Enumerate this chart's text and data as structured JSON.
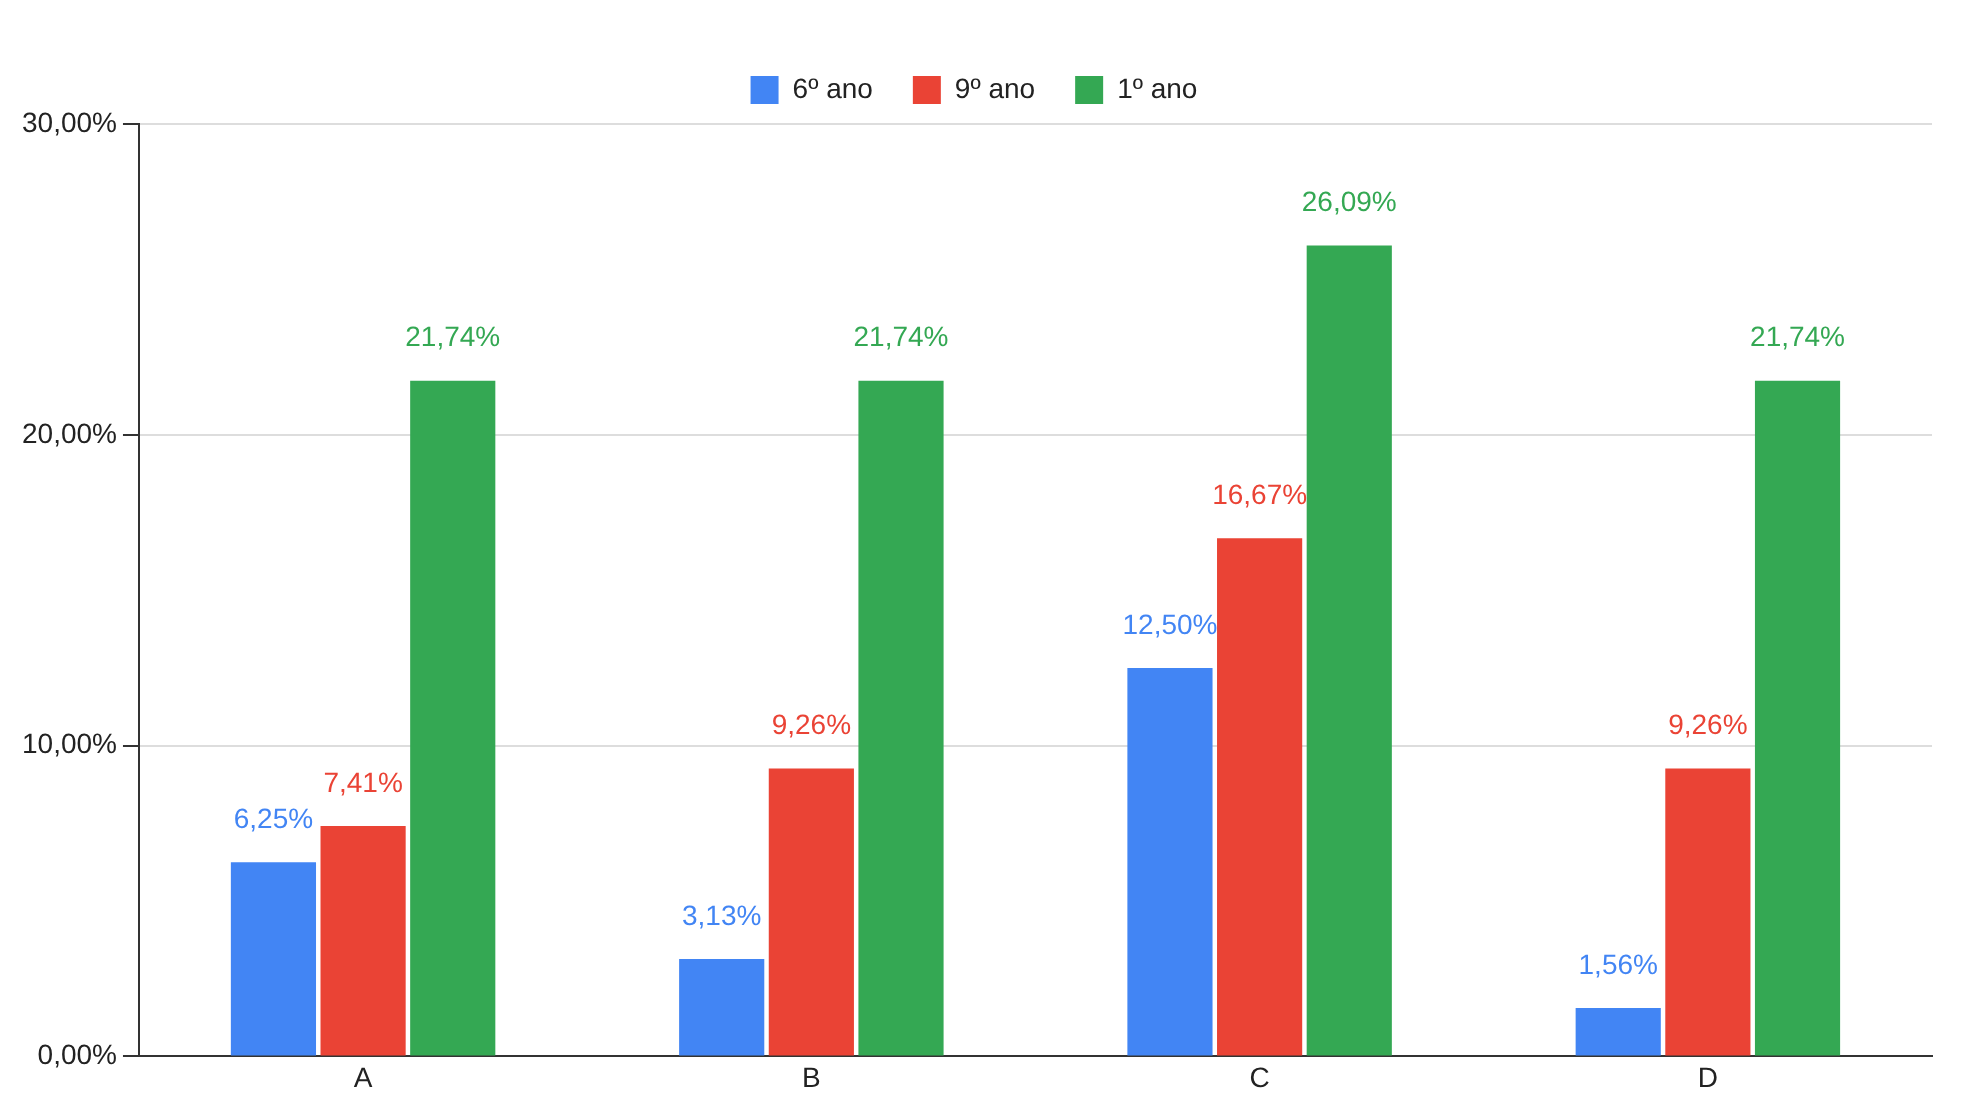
{
  "chart_data": {
    "type": "bar",
    "categories": [
      "A",
      "B",
      "C",
      "D"
    ],
    "series": [
      {
        "name": "6º ano",
        "color": "#4285f4",
        "values": [
          6.25,
          3.13,
          12.5,
          1.56
        ],
        "value_labels": [
          "6,25%",
          "3,13%",
          "12,50%",
          "1,56%"
        ]
      },
      {
        "name": "9º ano",
        "color": "#ea4335",
        "values": [
          7.41,
          9.26,
          16.67,
          9.26
        ],
        "value_labels": [
          "7,41%",
          "9,26%",
          "16,67%",
          "9,26%"
        ]
      },
      {
        "name": "1º ano",
        "color": "#34a853",
        "values": [
          21.74,
          21.74,
          26.09,
          21.74
        ],
        "value_labels": [
          "21,74%",
          "21,74%",
          "26,09%",
          "21,74%"
        ]
      }
    ],
    "ylim": [
      0,
      30
    ],
    "yticks": [
      {
        "value": 0,
        "label": "0,00%"
      },
      {
        "value": 10,
        "label": "10,00%"
      },
      {
        "value": 20,
        "label": "20,00%"
      },
      {
        "value": 30,
        "label": "30,00%"
      }
    ],
    "grid": "y",
    "legend": "top"
  }
}
